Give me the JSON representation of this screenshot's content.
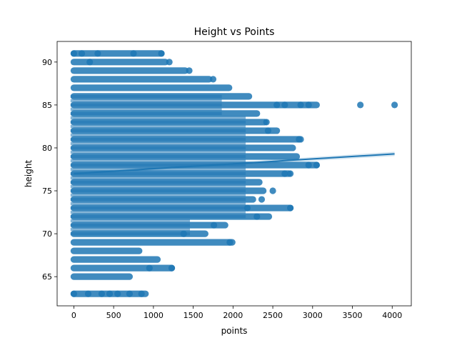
{
  "chart_data": {
    "type": "scatter",
    "title": "Height vs Points",
    "xlabel": "points",
    "ylabel": "height",
    "xlim": [
      -210,
      4240
    ],
    "ylim": [
      61.6,
      92.4
    ],
    "x_ticks": [
      0,
      500,
      1000,
      1500,
      2000,
      2500,
      3000,
      3500,
      4000
    ],
    "x_tick_labels": [
      "0",
      "500",
      "1000",
      "1500",
      "2000",
      "2500",
      "3000",
      "3500",
      "4000"
    ],
    "y_ticks": [
      65,
      70,
      75,
      80,
      85,
      90
    ],
    "y_tick_labels": [
      "65",
      "70",
      "75",
      "80",
      "85",
      "90"
    ],
    "grid": false,
    "legend": "none",
    "colors": {
      "points": "#1f77b4",
      "fit_line": "#1f77b4"
    },
    "regression": {
      "x": [
        0,
        4030
      ],
      "y": [
        77.0,
        79.3
      ],
      "confidence_band": true
    },
    "band_levels": [
      {
        "height": 63,
        "max_points": 900
      },
      {
        "height": 65,
        "max_points": 700
      },
      {
        "height": 66,
        "max_points": 1230
      },
      {
        "height": 67,
        "max_points": 1050
      },
      {
        "height": 68,
        "max_points": 820
      },
      {
        "height": 69,
        "max_points": 1990
      },
      {
        "height": 70,
        "max_points": 1650
      },
      {
        "height": 71,
        "max_points": 1900
      },
      {
        "height": 72,
        "max_points": 2450
      },
      {
        "height": 73,
        "max_points": 2720
      },
      {
        "height": 74,
        "max_points": 2250
      },
      {
        "height": 75,
        "max_points": 2380
      },
      {
        "height": 76,
        "max_points": 2330
      },
      {
        "height": 77,
        "max_points": 2700
      },
      {
        "height": 78,
        "max_points": 3050
      },
      {
        "height": 79,
        "max_points": 2800
      },
      {
        "height": 80,
        "max_points": 2750
      },
      {
        "height": 81,
        "max_points": 2850
      },
      {
        "height": 82,
        "max_points": 2550
      },
      {
        "height": 83,
        "max_points": 2400
      },
      {
        "height": 84,
        "max_points": 2300
      },
      {
        "height": 85,
        "max_points": 3050
      },
      {
        "height": 86,
        "max_points": 2200
      },
      {
        "height": 87,
        "max_points": 1950
      },
      {
        "height": 88,
        "max_points": 1700
      },
      {
        "height": 89,
        "max_points": 1400
      },
      {
        "height": 90,
        "max_points": 1150
      },
      {
        "height": 91,
        "max_points": 1100
      }
    ],
    "points": [
      {
        "x": 3600,
        "y": 85
      },
      {
        "x": 4030,
        "y": 85
      },
      {
        "x": 2720,
        "y": 73
      },
      {
        "x": 2830,
        "y": 81
      },
      {
        "x": 2950,
        "y": 78
      },
      {
        "x": 3050,
        "y": 78
      },
      {
        "x": 2550,
        "y": 85
      },
      {
        "x": 2650,
        "y": 85
      },
      {
        "x": 2850,
        "y": 85
      },
      {
        "x": 2950,
        "y": 85
      },
      {
        "x": 1100,
        "y": 91
      },
      {
        "x": 750,
        "y": 91
      },
      {
        "x": 0,
        "y": 91
      },
      {
        "x": 100,
        "y": 91
      },
      {
        "x": 300,
        "y": 91
      },
      {
        "x": 200,
        "y": 90
      },
      {
        "x": 0,
        "y": 63
      },
      {
        "x": 180,
        "y": 63
      },
      {
        "x": 350,
        "y": 63
      },
      {
        "x": 450,
        "y": 63
      },
      {
        "x": 550,
        "y": 63
      },
      {
        "x": 700,
        "y": 63
      },
      {
        "x": 850,
        "y": 63
      },
      {
        "x": 1230,
        "y": 66
      },
      {
        "x": 950,
        "y": 66
      },
      {
        "x": 1960,
        "y": 69
      },
      {
        "x": 1380,
        "y": 70
      },
      {
        "x": 1760,
        "y": 71
      },
      {
        "x": 2300,
        "y": 72
      },
      {
        "x": 2180,
        "y": 73
      },
      {
        "x": 2360,
        "y": 74
      },
      {
        "x": 2500,
        "y": 75
      },
      {
        "x": 2650,
        "y": 77
      },
      {
        "x": 2720,
        "y": 77
      },
      {
        "x": 2440,
        "y": 82
      },
      {
        "x": 2420,
        "y": 83
      },
      {
        "x": 1750,
        "y": 88
      },
      {
        "x": 1450,
        "y": 89
      },
      {
        "x": 1200,
        "y": 90
      }
    ]
  }
}
